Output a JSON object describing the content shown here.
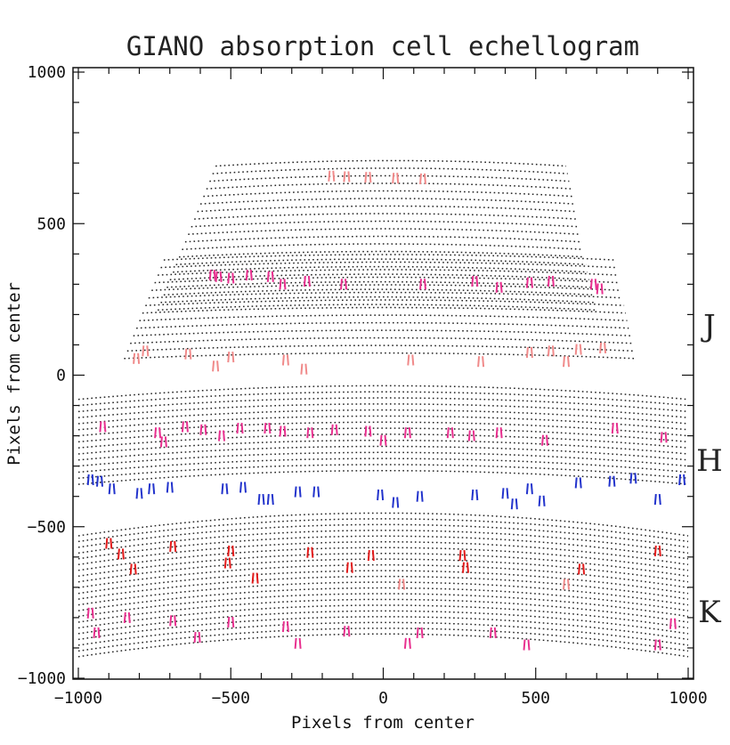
{
  "chart_data": {
    "type": "scatter",
    "title": "GIANO absorption cell echellogram",
    "xlabel": "Pixels from center",
    "ylabel": "Pixels from center",
    "xlim": [
      -1000,
      1000
    ],
    "ylim": [
      -1000,
      1000
    ],
    "xticks": [
      "−1000",
      "−500",
      "0",
      "500",
      "1000"
    ],
    "xtick_values": [
      -1000,
      -500,
      0,
      500,
      1000
    ],
    "yticks": [
      "1000",
      "500",
      "0",
      "−500",
      "−1000"
    ],
    "ytick_values": [
      1000,
      500,
      0,
      -500,
      -1000
    ],
    "bands": [
      {
        "label": "J",
        "y": 165
      },
      {
        "label": "H",
        "y": -280
      },
      {
        "label": "K",
        "y": -780
      }
    ],
    "orders": [
      {
        "group": "J-upper",
        "y0": 690,
        "xmin": -550,
        "xmax": 600,
        "count": 20,
        "step": -25,
        "curve": 18,
        "xmin_step": -10,
        "xmax_step": 5
      },
      {
        "group": "J-lower",
        "y0": 380,
        "xmin": -720,
        "xmax": 760,
        "count": 14,
        "step": -25,
        "curve": 18,
        "xmin_step": -10,
        "xmax_step": 5
      },
      {
        "group": "H",
        "y0": -80,
        "xmin": -1000,
        "xmax": 1000,
        "count": 15,
        "step": -20,
        "curve": 45,
        "xmin_step": -8,
        "xmax_step": 3
      },
      {
        "group": "K",
        "y0": -530,
        "xmin": -1000,
        "xmax": 1000,
        "count": 22,
        "step": -19,
        "curve": 75,
        "xmin_step": 0,
        "xmax_step": 0
      }
    ],
    "series": [
      {
        "color": "#f08a8a",
        "points": [
          [
            -170,
            657
          ],
          [
            -120,
            655
          ],
          [
            -50,
            653
          ],
          [
            40,
            650
          ],
          [
            130,
            648
          ],
          [
            -810,
            55
          ],
          [
            -780,
            80
          ],
          [
            -640,
            70
          ],
          [
            -550,
            30
          ],
          [
            -500,
            60
          ],
          [
            -320,
            50
          ],
          [
            -260,
            20
          ],
          [
            90,
            50
          ],
          [
            320,
            45
          ],
          [
            480,
            75
          ],
          [
            550,
            80
          ],
          [
            600,
            45
          ],
          [
            640,
            85
          ],
          [
            720,
            90
          ],
          [
            60,
            -690
          ],
          [
            600,
            -690
          ]
        ]
      },
      {
        "color": "#e8308f",
        "points": [
          [
            -560,
            330
          ],
          [
            -540,
            325
          ],
          [
            -500,
            320
          ],
          [
            -440,
            330
          ],
          [
            -370,
            325
          ],
          [
            -330,
            300
          ],
          [
            -250,
            310
          ],
          [
            -130,
            300
          ],
          [
            130,
            300
          ],
          [
            300,
            310
          ],
          [
            380,
            290
          ],
          [
            480,
            305
          ],
          [
            550,
            310
          ],
          [
            690,
            300
          ],
          [
            710,
            285
          ],
          [
            -920,
            -170
          ],
          [
            -740,
            -190
          ],
          [
            -720,
            -220
          ],
          [
            -650,
            -170
          ],
          [
            -590,
            -180
          ],
          [
            -530,
            -200
          ],
          [
            -470,
            -175
          ],
          [
            -380,
            -175
          ],
          [
            -330,
            -185
          ],
          [
            -240,
            -190
          ],
          [
            -160,
            -180
          ],
          [
            -50,
            -185
          ],
          [
            0,
            -215
          ],
          [
            80,
            -190
          ],
          [
            220,
            -190
          ],
          [
            290,
            -200
          ],
          [
            380,
            -190
          ],
          [
            530,
            -215
          ],
          [
            760,
            -175
          ],
          [
            920,
            -205
          ],
          [
            -960,
            -785
          ],
          [
            -940,
            -850
          ],
          [
            -840,
            -800
          ],
          [
            -690,
            -810
          ],
          [
            -610,
            -865
          ],
          [
            -500,
            -815
          ],
          [
            -320,
            -830
          ],
          [
            -280,
            -885
          ],
          [
            -120,
            -845
          ],
          [
            80,
            -885
          ],
          [
            120,
            -850
          ],
          [
            360,
            -850
          ],
          [
            470,
            -890
          ],
          [
            900,
            -890
          ],
          [
            950,
            -820
          ]
        ]
      },
      {
        "color": "#2233cc",
        "points": [
          [
            -960,
            -345
          ],
          [
            -930,
            -350
          ],
          [
            -890,
            -375
          ],
          [
            -800,
            -390
          ],
          [
            -760,
            -375
          ],
          [
            -700,
            -370
          ],
          [
            -520,
            -375
          ],
          [
            -460,
            -370
          ],
          [
            -400,
            -410
          ],
          [
            -370,
            -410
          ],
          [
            -280,
            -385
          ],
          [
            -220,
            -385
          ],
          [
            -10,
            -395
          ],
          [
            40,
            -420
          ],
          [
            120,
            -400
          ],
          [
            300,
            -395
          ],
          [
            400,
            -390
          ],
          [
            430,
            -425
          ],
          [
            480,
            -375
          ],
          [
            520,
            -415
          ],
          [
            640,
            -355
          ],
          [
            750,
            -350
          ],
          [
            820,
            -340
          ],
          [
            900,
            -410
          ],
          [
            980,
            -345
          ]
        ]
      },
      {
        "color": "#e21b1b",
        "points": [
          [
            -900,
            -555
          ],
          [
            -860,
            -590
          ],
          [
            -820,
            -640
          ],
          [
            -690,
            -565
          ],
          [
            -500,
            -580
          ],
          [
            -510,
            -620
          ],
          [
            -420,
            -670
          ],
          [
            -240,
            -585
          ],
          [
            -110,
            -635
          ],
          [
            -40,
            -595
          ],
          [
            260,
            -595
          ],
          [
            270,
            -635
          ],
          [
            650,
            -640
          ],
          [
            900,
            -580
          ]
        ]
      }
    ]
  }
}
